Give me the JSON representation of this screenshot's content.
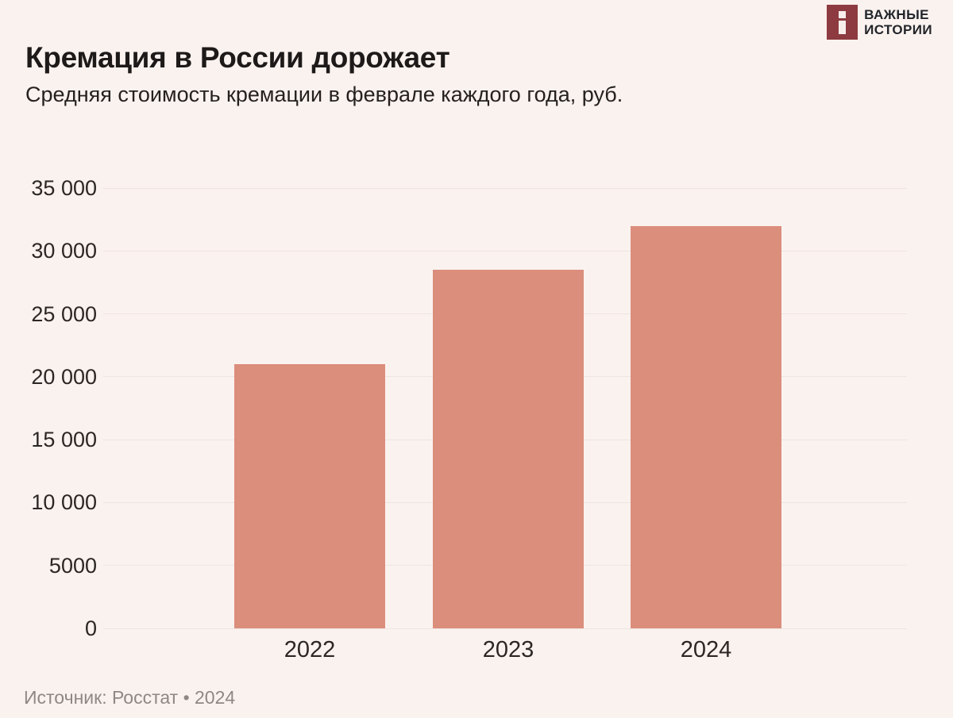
{
  "page": {
    "background": "#faf2ef"
  },
  "logo": {
    "name": "Важные истории",
    "text": "ВАЖНЫЕ\nИСТОРИИ",
    "square_color": "#8d3b40"
  },
  "header": {
    "title": "Кремация в России дорожает",
    "subtitle": "Средняя стоимость кремации в феврале каждого года, руб."
  },
  "chart_data": {
    "type": "bar",
    "title": "Кремация в России дорожает",
    "subtitle": "Средняя стоимость кремации в феврале каждого года, руб.",
    "categories": [
      "2022",
      "2023",
      "2024"
    ],
    "values": [
      21000,
      28500,
      32000
    ],
    "unit": "руб.",
    "xlabel": "",
    "ylabel": "",
    "ylim": [
      0,
      35000
    ],
    "ytick_step": 5000,
    "yticks": [
      0,
      5000,
      10000,
      15000,
      20000,
      25000,
      30000,
      35000
    ],
    "ytick_labels": [
      "0",
      "5000",
      "10 000",
      "15 000",
      "20 000",
      "25 000",
      "30 000",
      "35 000"
    ],
    "grid": true,
    "legend": "none",
    "bar_color": "#db8e7c",
    "grid_color": "#efe4e0"
  },
  "footer": {
    "source": "Источник: Росстат • 2024"
  }
}
